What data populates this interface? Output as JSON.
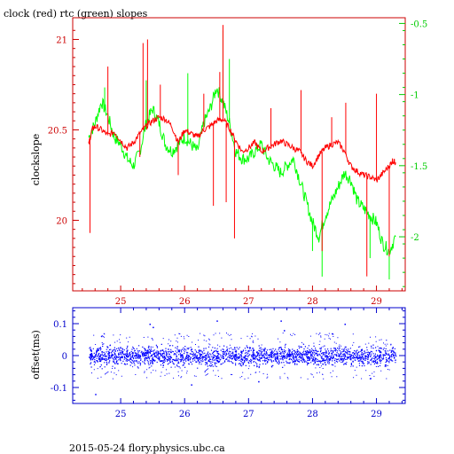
{
  "figure": {
    "title": "clock (red) rtc (green) slopes",
    "footer": "2015-05-24 flory.physics.ubc.ca"
  },
  "chart_data": [
    {
      "type": "line",
      "title": "clock (red) rtc (green) slopes",
      "xlabel": "",
      "ylabel": "clockslope",
      "y2label": "",
      "xlim": [
        24.25,
        29.45
      ],
      "ylim": [
        19.61,
        21.12
      ],
      "y2lim": [
        -2.38,
        -0.46
      ],
      "xticks": [
        25,
        26,
        27,
        28,
        29
      ],
      "xtick_labels": [
        "25",
        "26",
        "27",
        "28",
        "29"
      ],
      "yticks": [
        20,
        20.5,
        21
      ],
      "ytick_labels": [
        "20",
        "20.5",
        "21"
      ],
      "y2ticks": [
        -2,
        -1.5,
        -1,
        -0.5
      ],
      "y2tick_labels": [
        "-2",
        "-1.5",
        "-1",
        "-0.5"
      ],
      "axis_color": "#cc0000",
      "axis2_color": "#00cc00",
      "series": [
        {
          "name": "clock",
          "axis": "left",
          "color": "#ff0000",
          "x": [
            24.5,
            24.55,
            24.6,
            24.7,
            24.8,
            24.9,
            25.0,
            25.1,
            25.2,
            25.3,
            25.4,
            25.5,
            25.6,
            25.7,
            25.8,
            25.9,
            26.0,
            26.1,
            26.2,
            26.3,
            26.4,
            26.5,
            26.6,
            26.7,
            26.8,
            26.9,
            27.0,
            27.1,
            27.2,
            27.3,
            27.4,
            27.5,
            27.6,
            27.7,
            27.8,
            27.9,
            28.0,
            28.1,
            28.2,
            28.3,
            28.4,
            28.5,
            28.6,
            28.7,
            28.8,
            28.9,
            29.0,
            29.1,
            29.2,
            29.25,
            29.3
          ],
          "y": [
            20.42,
            20.5,
            20.52,
            20.5,
            20.47,
            20.49,
            20.44,
            20.4,
            20.43,
            20.48,
            20.52,
            20.55,
            20.57,
            20.56,
            20.52,
            20.43,
            20.5,
            20.48,
            20.46,
            20.5,
            20.52,
            20.55,
            20.56,
            20.51,
            20.44,
            20.38,
            20.4,
            20.43,
            20.38,
            20.4,
            20.42,
            20.44,
            20.42,
            20.4,
            20.38,
            20.33,
            20.3,
            20.36,
            20.4,
            20.42,
            20.43,
            20.38,
            20.3,
            20.27,
            20.25,
            20.24,
            20.22,
            20.26,
            20.3,
            20.33,
            20.32
          ],
          "spikes": [
            {
              "x": 24.52,
              "y": 19.93
            },
            {
              "x": 24.8,
              "y": 20.85
            },
            {
              "x": 25.3,
              "y": 20.35
            },
            {
              "x": 25.35,
              "y": 20.98
            },
            {
              "x": 25.42,
              "y": 21.0
            },
            {
              "x": 25.62,
              "y": 20.75
            },
            {
              "x": 25.9,
              "y": 20.25
            },
            {
              "x": 26.3,
              "y": 20.7
            },
            {
              "x": 26.45,
              "y": 20.08
            },
            {
              "x": 26.55,
              "y": 20.82
            },
            {
              "x": 26.6,
              "y": 21.08
            },
            {
              "x": 26.65,
              "y": 20.1
            },
            {
              "x": 26.78,
              "y": 19.9
            },
            {
              "x": 27.35,
              "y": 20.62
            },
            {
              "x": 27.82,
              "y": 20.72
            },
            {
              "x": 28.15,
              "y": 19.83
            },
            {
              "x": 28.3,
              "y": 20.57
            },
            {
              "x": 28.52,
              "y": 20.65
            },
            {
              "x": 28.85,
              "y": 19.69
            },
            {
              "x": 29.0,
              "y": 20.7
            },
            {
              "x": 29.2,
              "y": 19.8
            }
          ]
        },
        {
          "name": "rtc",
          "axis": "right",
          "color": "#00ff00",
          "x": [
            24.5,
            24.6,
            24.7,
            24.8,
            24.9,
            25.0,
            25.1,
            25.2,
            25.3,
            25.4,
            25.5,
            25.6,
            25.7,
            25.8,
            25.9,
            26.0,
            26.1,
            26.2,
            26.3,
            26.4,
            26.5,
            26.6,
            26.7,
            26.8,
            26.9,
            27.0,
            27.1,
            27.2,
            27.3,
            27.4,
            27.5,
            27.6,
            27.7,
            27.8,
            27.9,
            28.0,
            28.1,
            28.2,
            28.3,
            28.4,
            28.5,
            28.6,
            28.7,
            28.8,
            28.9,
            29.0,
            29.1,
            29.2,
            29.3
          ],
          "y": [
            -1.3,
            -1.2,
            -1.05,
            -1.15,
            -1.3,
            -1.35,
            -1.45,
            -1.5,
            -1.4,
            -1.2,
            -1.1,
            -1.2,
            -1.35,
            -1.4,
            -1.35,
            -1.3,
            -1.35,
            -1.4,
            -1.2,
            -1.1,
            -0.95,
            -1.05,
            -1.2,
            -1.4,
            -1.45,
            -1.45,
            -1.4,
            -1.35,
            -1.45,
            -1.5,
            -1.55,
            -1.5,
            -1.45,
            -1.6,
            -1.75,
            -1.9,
            -2.0,
            -1.85,
            -1.75,
            -1.65,
            -1.55,
            -1.6,
            -1.75,
            -1.8,
            -1.85,
            -1.9,
            -2.05,
            -2.1,
            -2.0
          ],
          "spikes": [
            {
              "x": 24.75,
              "y": -0.95
            },
            {
              "x": 25.4,
              "y": -0.9
            },
            {
              "x": 26.05,
              "y": -0.85
            },
            {
              "x": 26.6,
              "y": -0.55
            },
            {
              "x": 26.7,
              "y": -0.75
            },
            {
              "x": 28.0,
              "y": -2.1
            },
            {
              "x": 28.15,
              "y": -2.28
            },
            {
              "x": 28.9,
              "y": -2.15
            },
            {
              "x": 29.2,
              "y": -2.3
            }
          ]
        }
      ]
    },
    {
      "type": "scatter",
      "title": "",
      "xlabel": "",
      "ylabel": "offset(ms)",
      "xlim": [
        24.25,
        29.45
      ],
      "ylim": [
        -0.15,
        0.15
      ],
      "xticks": [
        25,
        26,
        27,
        28,
        29
      ],
      "xtick_labels": [
        "25",
        "26",
        "27",
        "28",
        "29"
      ],
      "yticks": [
        -0.1,
        0,
        0.1
      ],
      "ytick_labels": [
        "-0.1",
        "0",
        "0.1"
      ],
      "axis_color": "#0000cc",
      "series": [
        {
          "name": "offset",
          "color": "#0000ff",
          "x_range": [
            24.5,
            29.3
          ],
          "band": [
            -0.028,
            0.028
          ],
          "outliers": [
            {
              "x": 25.45,
              "y": 0.1
            },
            {
              "x": 25.5,
              "y": 0.09
            },
            {
              "x": 26.5,
              "y": 0.11
            },
            {
              "x": 27.15,
              "y": -0.08
            },
            {
              "x": 27.5,
              "y": 0.11
            },
            {
              "x": 27.55,
              "y": 0.08
            },
            {
              "x": 28.5,
              "y": 0.1
            },
            {
              "x": 28.9,
              "y": -0.07
            },
            {
              "x": 24.6,
              "y": -0.12
            },
            {
              "x": 26.1,
              "y": -0.09
            },
            {
              "x": 28.3,
              "y": 0.07
            }
          ]
        }
      ]
    }
  ]
}
